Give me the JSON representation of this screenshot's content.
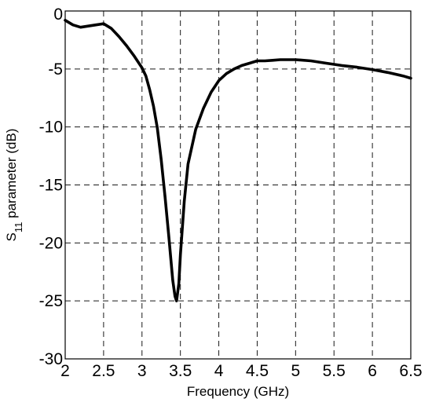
{
  "chart_data": {
    "type": "line",
    "title": "",
    "xlabel": "Frequency (GHz)",
    "ylabel": {
      "prefix": "S",
      "subscript": "11",
      "suffix": " parameter (dB)"
    },
    "xlim": [
      2,
      6.5
    ],
    "ylim": [
      -30,
      0
    ],
    "x_ticks": [
      2,
      2.5,
      3,
      3.5,
      4,
      4.5,
      5,
      5.5,
      6,
      6.5
    ],
    "x_tick_labels": [
      "2",
      "2.5",
      "3",
      "3.5",
      "4",
      "4.5",
      "5",
      "5.5",
      "6",
      "6.5"
    ],
    "y_ticks": [
      0,
      -5,
      -10,
      -15,
      -20,
      -25,
      -30
    ],
    "y_tick_labels": [
      "0",
      "-5",
      "-10",
      "-15",
      "-20",
      "-25",
      "-30"
    ],
    "grid": true,
    "legend": false,
    "series": [
      {
        "color": "#000000",
        "x": [
          2.0,
          2.1,
          2.2,
          2.3,
          2.4,
          2.5,
          2.6,
          2.7,
          2.8,
          2.9,
          3.0,
          3.05,
          3.1,
          3.15,
          3.2,
          3.25,
          3.3,
          3.35,
          3.4,
          3.43,
          3.45,
          3.48,
          3.5,
          3.55,
          3.6,
          3.7,
          3.8,
          3.9,
          4.0,
          4.1,
          4.2,
          4.3,
          4.4,
          4.5,
          4.6,
          4.7,
          4.8,
          4.9,
          5.0,
          5.2,
          5.4,
          5.6,
          5.8,
          6.0,
          6.2,
          6.4,
          6.5
        ],
        "y": [
          -0.8,
          -1.2,
          -1.4,
          -1.3,
          -1.2,
          -1.1,
          -1.5,
          -2.2,
          -3.0,
          -3.9,
          -4.9,
          -5.6,
          -6.8,
          -8.2,
          -10.1,
          -12.8,
          -16.0,
          -19.5,
          -23.2,
          -24.6,
          -25.0,
          -23.5,
          -21.0,
          -16.4,
          -13.2,
          -10.2,
          -8.4,
          -7.0,
          -6.0,
          -5.4,
          -5.0,
          -4.7,
          -4.5,
          -4.3,
          -4.3,
          -4.25,
          -4.2,
          -4.2,
          -4.2,
          -4.3,
          -4.5,
          -4.7,
          -4.85,
          -5.05,
          -5.3,
          -5.6,
          -5.8
        ]
      }
    ]
  }
}
